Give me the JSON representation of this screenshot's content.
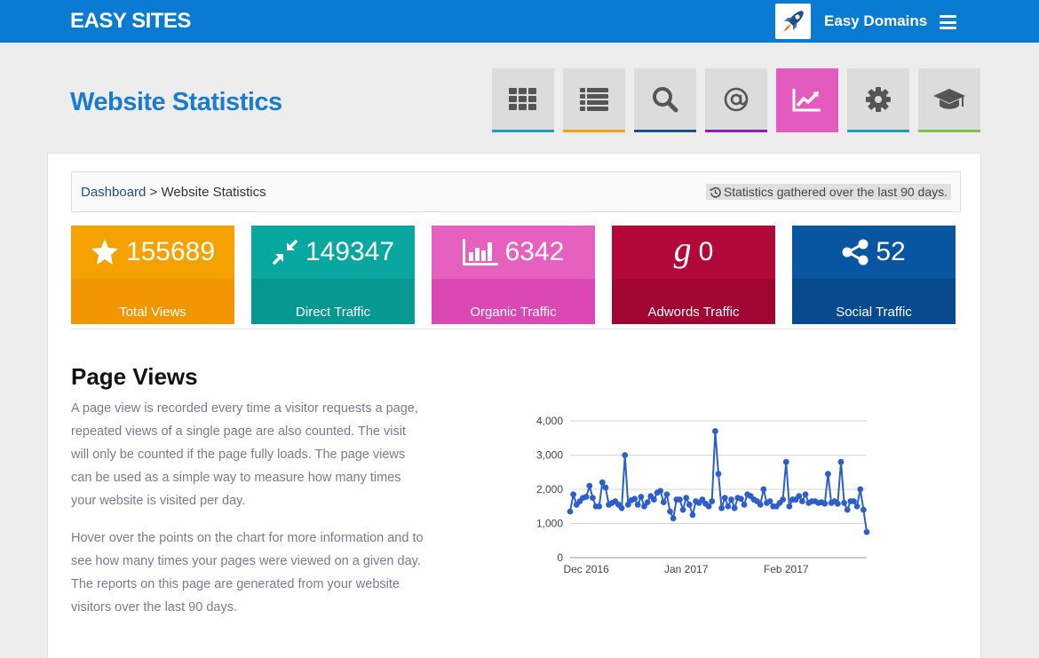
{
  "header": {
    "brand": "EASY SITES",
    "domains_label": "Easy Domains"
  },
  "page_title": "Website Statistics",
  "breadcrumb": {
    "root": "Dashboard",
    "separator": " > ",
    "current": "Website Statistics",
    "note": "Statistics gathered over the last 90 days."
  },
  "tools": [
    {
      "icon": "grid-icon",
      "accent": "#1aa1b8"
    },
    {
      "icon": "list-icon",
      "accent": "#f0a30a"
    },
    {
      "icon": "search-icon",
      "accent": "#1f4e8c"
    },
    {
      "icon": "at-icon",
      "accent": "#8e1fb3"
    },
    {
      "icon": "chart-line-icon",
      "accent": "#e45bbf",
      "active": true
    },
    {
      "icon": "gear-icon",
      "accent": "#1aa1b8"
    },
    {
      "icon": "graduation-cap-icon",
      "accent": "#7dc242"
    }
  ],
  "cards": [
    {
      "value": "155689",
      "label": "Total Views",
      "icon": "star-icon",
      "top": "#f5a100",
      "bottom": "#f29600"
    },
    {
      "value": "149347",
      "label": "Direct Traffic",
      "icon": "compress-icon",
      "top": "#0aa7a0",
      "bottom": "#089892"
    },
    {
      "value": "6342",
      "label": "Organic Traffic",
      "icon": "bar-chart-icon",
      "top": "#e660bf",
      "bottom": "#dc48b3"
    },
    {
      "value": "0",
      "label": "Adwords Traffic",
      "icon": "google-icon",
      "top": "#b2083a",
      "bottom": "#a10532"
    },
    {
      "value": "52",
      "label": "Social Traffic",
      "icon": "share-icon",
      "top": "#0856a2",
      "bottom": "#074a8e"
    }
  ],
  "page_views": {
    "heading": "Page Views",
    "paragraph1": "A page view is recorded every time a visitor requests a page, repeated views of a single page are also counted. The visit will only be counted if the page fully loads. The page views can be used as a simple way to measure how many times your website is visited per day.",
    "paragraph2": "Hover over the points on the chart for more information and to see how many times your pages were viewed on a given day. The reports on this page are generated from your website visitors over the last 90 days."
  },
  "chart_data": {
    "type": "line",
    "x_start": "2016-11-26",
    "x_step_days": 1,
    "x_ticks": [
      {
        "label": "Dec 2016",
        "date": "2016-12-01"
      },
      {
        "label": "Jan 2017",
        "date": "2017-01-01"
      },
      {
        "label": "Feb 2017",
        "date": "2017-02-01"
      }
    ],
    "y_ticks": [
      {
        "label": "0",
        "value": 0
      },
      {
        "label": "1,000",
        "value": 1000
      },
      {
        "label": "2,000",
        "value": 2000
      },
      {
        "label": "3,000",
        "value": 3000
      },
      {
        "label": "4,000",
        "value": 4000
      }
    ],
    "ylim": [
      0,
      4000
    ],
    "grid": true,
    "color": "#2d5fcb",
    "values": [
      1350,
      1850,
      1550,
      1650,
      1750,
      1780,
      2100,
      1750,
      1500,
      1500,
      2200,
      2050,
      1550,
      1600,
      1650,
      1550,
      1450,
      3000,
      1550,
      1680,
      1720,
      1550,
      1780,
      1500,
      1620,
      1800,
      1700,
      1900,
      1950,
      1620,
      1850,
      1350,
      1150,
      1700,
      1700,
      1400,
      1750,
      1550,
      1250,
      1650,
      1600,
      1700,
      1580,
      1500,
      1650,
      3700,
      2450,
      1450,
      1750,
      1500,
      1700,
      1450,
      1750,
      1720,
      1550,
      1850,
      1800,
      1700,
      1650,
      1550,
      2000,
      1600,
      1650,
      1500,
      1500,
      1600,
      1700,
      2800,
      1500,
      1700,
      1700,
      1800,
      1650,
      1850,
      1600,
      1650,
      1650,
      1600,
      1620,
      1580,
      2450,
      1600,
      1650,
      1580,
      2800,
      1600,
      1400,
      1650,
      1650,
      1500,
      2000,
      1400,
      750
    ]
  }
}
